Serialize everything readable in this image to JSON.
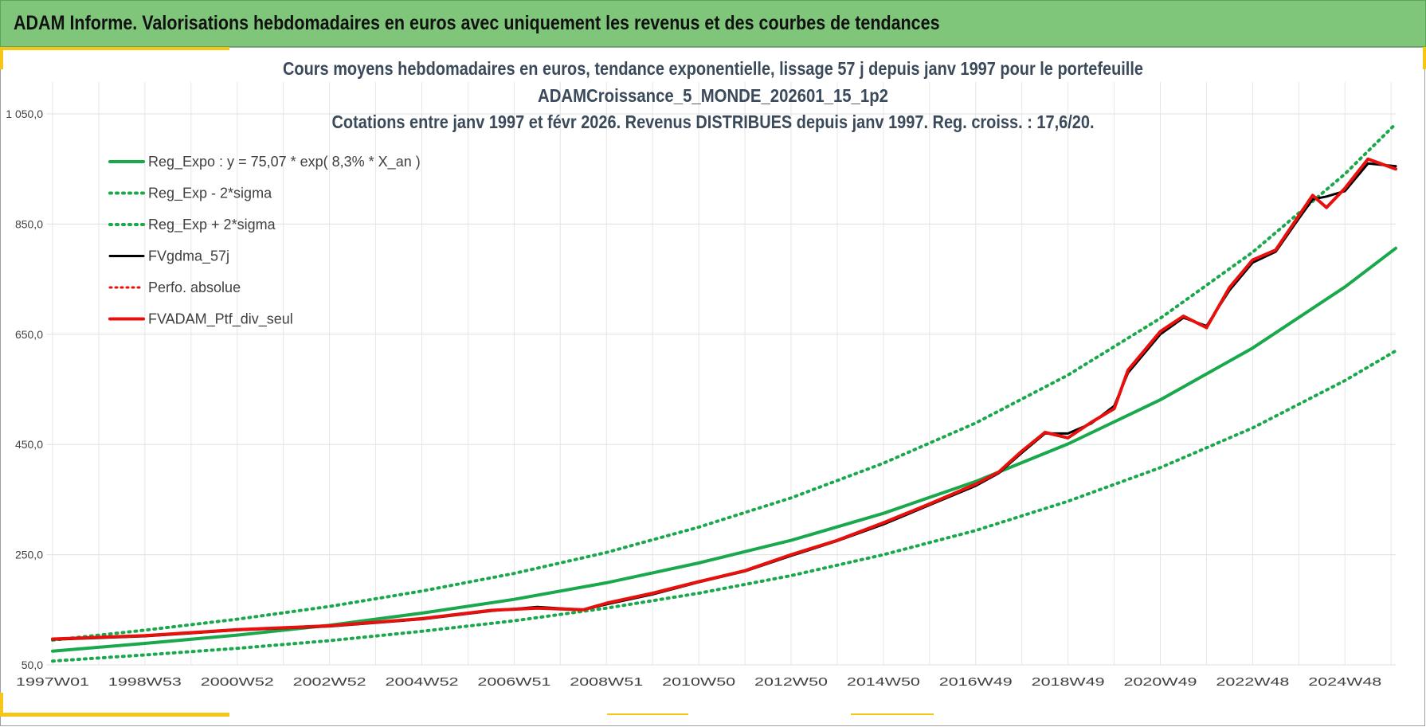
{
  "header": {
    "title": "ADAM Informe. Valorisations hebdomadaires en euros avec uniquement les revenus et des courbes de tendances"
  },
  "colors": {
    "header_bg": "#7fc67a",
    "accent": "#f5c518",
    "trend": "#1aa84c",
    "smoothed": "#000000",
    "portfolio": "#e8100c"
  },
  "chart_data": {
    "type": "line",
    "title_lines": [
      "Cours moyens hebdomadaires  en euros, tendance exponentielle, lissage 57 j depuis janv 1997 pour le portefeuille",
      "ADAMCroissance_5_MONDE_202601_15_1p2",
      "Cotations  entre janv 1997 et févr 2026. Revenus DISTRIBUES depuis janv 1997. Reg. croiss. : 17,6/20."
    ],
    "xlabel": "",
    "ylabel": "",
    "ylim": [
      50,
      1050
    ],
    "y_ticks": [
      "1 050,0",
      "850,0",
      "650,0",
      "450,0",
      "250,0",
      "50,0"
    ],
    "y_tick_values": [
      1050,
      850,
      650,
      450,
      250,
      50
    ],
    "x_range": [
      1997.0,
      2026.1
    ],
    "x_ticks": [
      "1997W01",
      "1998W53",
      "2000W52",
      "2002W52",
      "2004W52",
      "2006W51",
      "2008W51",
      "2010W50",
      "2012W50",
      "2014W50",
      "2016W49",
      "2018W49",
      "2020W49",
      "2022W48",
      "2024W48"
    ],
    "x_tick_values": [
      1997.0,
      1999.0,
      2001.0,
      2003.0,
      2005.0,
      2007.0,
      2009.0,
      2011.0,
      2013.0,
      2015.0,
      2017.0,
      2019.0,
      2021.0,
      2023.0,
      2025.0
    ],
    "grid": true,
    "legend_position": "top-left",
    "series": [
      {
        "name": "Reg_Expo : y = 75,07 * exp( 8,3% *  X_an )",
        "style": "solid",
        "x": [
          1997,
          1999,
          2001,
          2003,
          2005,
          2007,
          2009,
          2011,
          2013,
          2015,
          2017,
          2019,
          2021,
          2023,
          2025,
          2026.1
        ],
        "y": [
          75,
          89,
          104,
          122,
          144,
          169,
          199,
          235,
          276,
          325,
          383,
          451,
          531,
          625,
          736,
          806
        ]
      },
      {
        "name": "Reg_Exp - 2*sigma",
        "style": "dotted",
        "x": [
          1997,
          1999,
          2001,
          2003,
          2005,
          2007,
          2009,
          2011,
          2013,
          2015,
          2017,
          2019,
          2021,
          2023,
          2025,
          2026.1
        ],
        "y": [
          57,
          68,
          80,
          94,
          111,
          130,
          153,
          180,
          212,
          250,
          294,
          347,
          408,
          480,
          566,
          620
        ]
      },
      {
        "name": "Reg_Exp + 2*sigma",
        "style": "dotted",
        "x": [
          1997,
          1999,
          2001,
          2003,
          2005,
          2007,
          2009,
          2011,
          2013,
          2015,
          2017,
          2019,
          2021,
          2023,
          2025,
          2026.1
        ],
        "y": [
          95,
          113,
          133,
          156,
          184,
          216,
          254,
          300,
          353,
          416,
          489,
          576,
          679,
          799,
          941,
          1032
        ]
      },
      {
        "name": "FVgdma_57j",
        "style": "solid",
        "x": [
          1997,
          1999,
          2001,
          2003,
          2005,
          2006.5,
          2007.5,
          2008.5,
          2009,
          2010,
          2011,
          2012,
          2013,
          2014,
          2015,
          2016,
          2017,
          2017.5,
          2018,
          2018.5,
          2019,
          2019.5,
          2020,
          2020.3,
          2021,
          2021.5,
          2022,
          2022.5,
          2023,
          2023.5,
          2024,
          2024.3,
          2024.6,
          2025,
          2025.5,
          2026.1
        ],
        "y": [
          96,
          102,
          113,
          120,
          133,
          148,
          155,
          150,
          160,
          178,
          200,
          220,
          248,
          275,
          305,
          340,
          375,
          398,
          435,
          470,
          470,
          488,
          520,
          580,
          650,
          680,
          665,
          730,
          780,
          800,
          860,
          895,
          900,
          910,
          960,
          955
        ]
      },
      {
        "name": "Perfo. absolue",
        "style": "dotted",
        "x": [],
        "y": []
      },
      {
        "name": "FVADAM_Ptf_div_seul",
        "style": "solid",
        "x": [
          1997,
          1999,
          2001,
          2003,
          2005,
          2006.5,
          2007.5,
          2008.5,
          2009,
          2010,
          2011,
          2012,
          2013,
          2014,
          2015,
          2016,
          2017,
          2017.5,
          2018,
          2018.5,
          2019,
          2019.5,
          2020,
          2020.3,
          2021,
          2021.5,
          2022,
          2022.5,
          2023,
          2023.5,
          2024,
          2024.3,
          2024.6,
          2025,
          2025.5,
          2026.1
        ],
        "y": [
          97,
          103,
          114,
          121,
          134,
          149,
          153,
          150,
          162,
          180,
          201,
          221,
          250,
          276,
          308,
          342,
          378,
          400,
          438,
          472,
          462,
          490,
          515,
          585,
          655,
          683,
          662,
          735,
          785,
          803,
          865,
          902,
          880,
          915,
          968,
          950
        ]
      }
    ]
  }
}
